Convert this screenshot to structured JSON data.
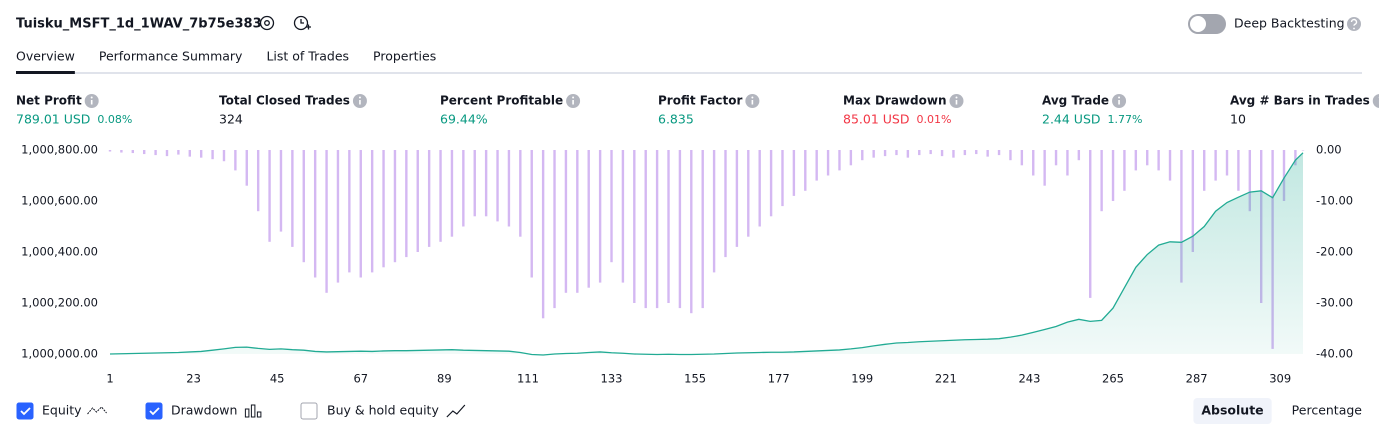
{
  "header": {
    "title": "Tuisku_MSFT_1d_1WAV_7b75e383",
    "deep_backtesting": "Deep Backtesting"
  },
  "tabs": [
    "Overview",
    "Performance Summary",
    "List of Trades",
    "Properties"
  ],
  "metrics": [
    {
      "label": "Net Profit",
      "value": "789.01 USD",
      "sub": "0.08%",
      "color": "#089981"
    },
    {
      "label": "Total Closed Trades",
      "value": "324",
      "color": "#131722"
    },
    {
      "label": "Percent Profitable",
      "value": "69.44%",
      "color": "#089981"
    },
    {
      "label": "Profit Factor",
      "value": "6.835",
      "color": "#089981"
    },
    {
      "label": "Max Drawdown",
      "value": "85.01 USD",
      "sub": "0.01%",
      "color": "#f23645"
    },
    {
      "label": "Avg Trade",
      "value": "2.44 USD",
      "sub": "1.77%",
      "color": "#089981"
    },
    {
      "label": "Avg # Bars in Trades",
      "value": "10",
      "color": "#131722"
    }
  ],
  "chart_data": {
    "type": "combo",
    "x": [
      1,
      4,
      7,
      10,
      13,
      16,
      19,
      22,
      25,
      28,
      31,
      34,
      37,
      40,
      43,
      46,
      49,
      52,
      55,
      58,
      61,
      64,
      67,
      70,
      73,
      76,
      79,
      82,
      85,
      88,
      91,
      94,
      97,
      100,
      103,
      106,
      109,
      112,
      115,
      118,
      121,
      124,
      127,
      130,
      133,
      136,
      139,
      142,
      145,
      148,
      151,
      154,
      157,
      160,
      163,
      166,
      169,
      172,
      175,
      178,
      181,
      184,
      187,
      190,
      193,
      196,
      199,
      202,
      205,
      208,
      211,
      214,
      217,
      220,
      223,
      226,
      229,
      232,
      235,
      238,
      241,
      244,
      247,
      250,
      253,
      256,
      259,
      262,
      265,
      268,
      271,
      274,
      277,
      280,
      283,
      286,
      289,
      292,
      295,
      298,
      301,
      304,
      307,
      310,
      313,
      315
    ],
    "series": [
      {
        "name": "Drawdown",
        "type": "bar",
        "axis": "y2",
        "color": "#d4b8f2",
        "values": [
          -0.3,
          -0.5,
          -0.6,
          -0.8,
          -1,
          -1.2,
          -0.9,
          -1.3,
          -1.5,
          -1.8,
          -2.2,
          -4,
          -7,
          -12,
          -18,
          -16,
          -19,
          -22,
          -25,
          -28,
          -26,
          -24,
          -25,
          -24,
          -23,
          -22,
          -21,
          -20,
          -19,
          -18,
          -17,
          -15,
          -13,
          -13,
          -14,
          -15,
          -17,
          -25,
          -33,
          -31,
          -28,
          -28,
          -27,
          -26,
          -22,
          -26,
          -30,
          -31,
          -31,
          -30,
          -31,
          -32,
          -31,
          -24,
          -21,
          -19,
          -17,
          -15,
          -13,
          -11,
          -9,
          -8,
          -6,
          -5,
          -4,
          -3,
          -2,
          -1.5,
          -1.2,
          -1,
          -1.5,
          -1,
          -0.8,
          -1.2,
          -1.5,
          -1,
          -0.8,
          -1.3,
          -1,
          -2,
          -3,
          -5,
          -7,
          -3,
          -5,
          -2,
          -29,
          -12,
          -10,
          -8,
          -4,
          -3,
          -4,
          -6,
          -26,
          -20,
          -8,
          -6,
          -5,
          -8,
          -12,
          -30,
          -39,
          -10,
          -3,
          0
        ]
      },
      {
        "name": "Equity",
        "type": "area",
        "color": "#22ab94",
        "values": [
          1000000,
          1000001,
          1000002,
          1000003,
          1000004,
          1000005,
          1000006,
          1000008,
          1000010,
          1000015,
          1000020,
          1000026,
          1000027,
          1000022,
          1000018,
          1000020,
          1000017,
          1000015,
          1000010,
          1000008,
          1000009,
          1000010,
          1000011,
          1000010,
          1000012,
          1000013,
          1000013,
          1000014,
          1000015,
          1000016,
          1000017,
          1000015,
          1000014,
          1000013,
          1000012,
          1000011,
          1000006,
          999998,
          999996,
          1000000,
          1000002,
          1000003,
          1000006,
          1000008,
          1000005,
          1000003,
          1000000,
          999999,
          999998,
          999999,
          999998,
          999998,
          999999,
          1000000,
          1000002,
          1000004,
          1000005,
          1000006,
          1000007,
          1000007,
          1000008,
          1000010,
          1000012,
          1000014,
          1000016,
          1000020,
          1000025,
          1000032,
          1000038,
          1000043,
          1000045,
          1000048,
          1000050,
          1000052,
          1000054,
          1000056,
          1000057,
          1000058,
          1000060,
          1000066,
          1000074,
          1000085,
          1000096,
          1000108,
          1000125,
          1000136,
          1000128,
          1000132,
          1000180,
          1000260,
          1000340,
          1000390,
          1000427,
          1000440,
          1000438,
          1000462,
          1000500,
          1000560,
          1000594,
          1000615,
          1000635,
          1000640,
          1000613,
          1000690,
          1000760,
          1000789.01
        ]
      }
    ],
    "xlim": [
      1,
      315
    ],
    "xticks": [
      1,
      23,
      45,
      67,
      89,
      111,
      133,
      155,
      177,
      199,
      221,
      243,
      265,
      287,
      309
    ],
    "ylim": [
      1000000,
      1000800
    ],
    "yticks": [
      {
        "value": 1000000,
        "label": "1,000,000.00"
      },
      {
        "value": 1000200,
        "label": "1,000,200.00"
      },
      {
        "value": 1000400,
        "label": "1,000,400.00"
      },
      {
        "value": 1000600,
        "label": "1,000,600.00"
      },
      {
        "value": 1000800,
        "label": "1,000,800.00"
      }
    ],
    "y2lim": [
      -40,
      0
    ],
    "y2ticks": [
      {
        "value": 0,
        "label": "0.00"
      },
      {
        "value": -10,
        "label": "-10.00"
      },
      {
        "value": -20,
        "label": "-20.00"
      },
      {
        "value": -30,
        "label": "-30.00"
      },
      {
        "value": -40,
        "label": "-40.00"
      }
    ],
    "grid": false
  },
  "controls": {
    "buy_hold_label": "Buy & hold equity",
    "scale_options": [
      "Absolute",
      "Percentage"
    ],
    "selected_scale_index": 0
  }
}
